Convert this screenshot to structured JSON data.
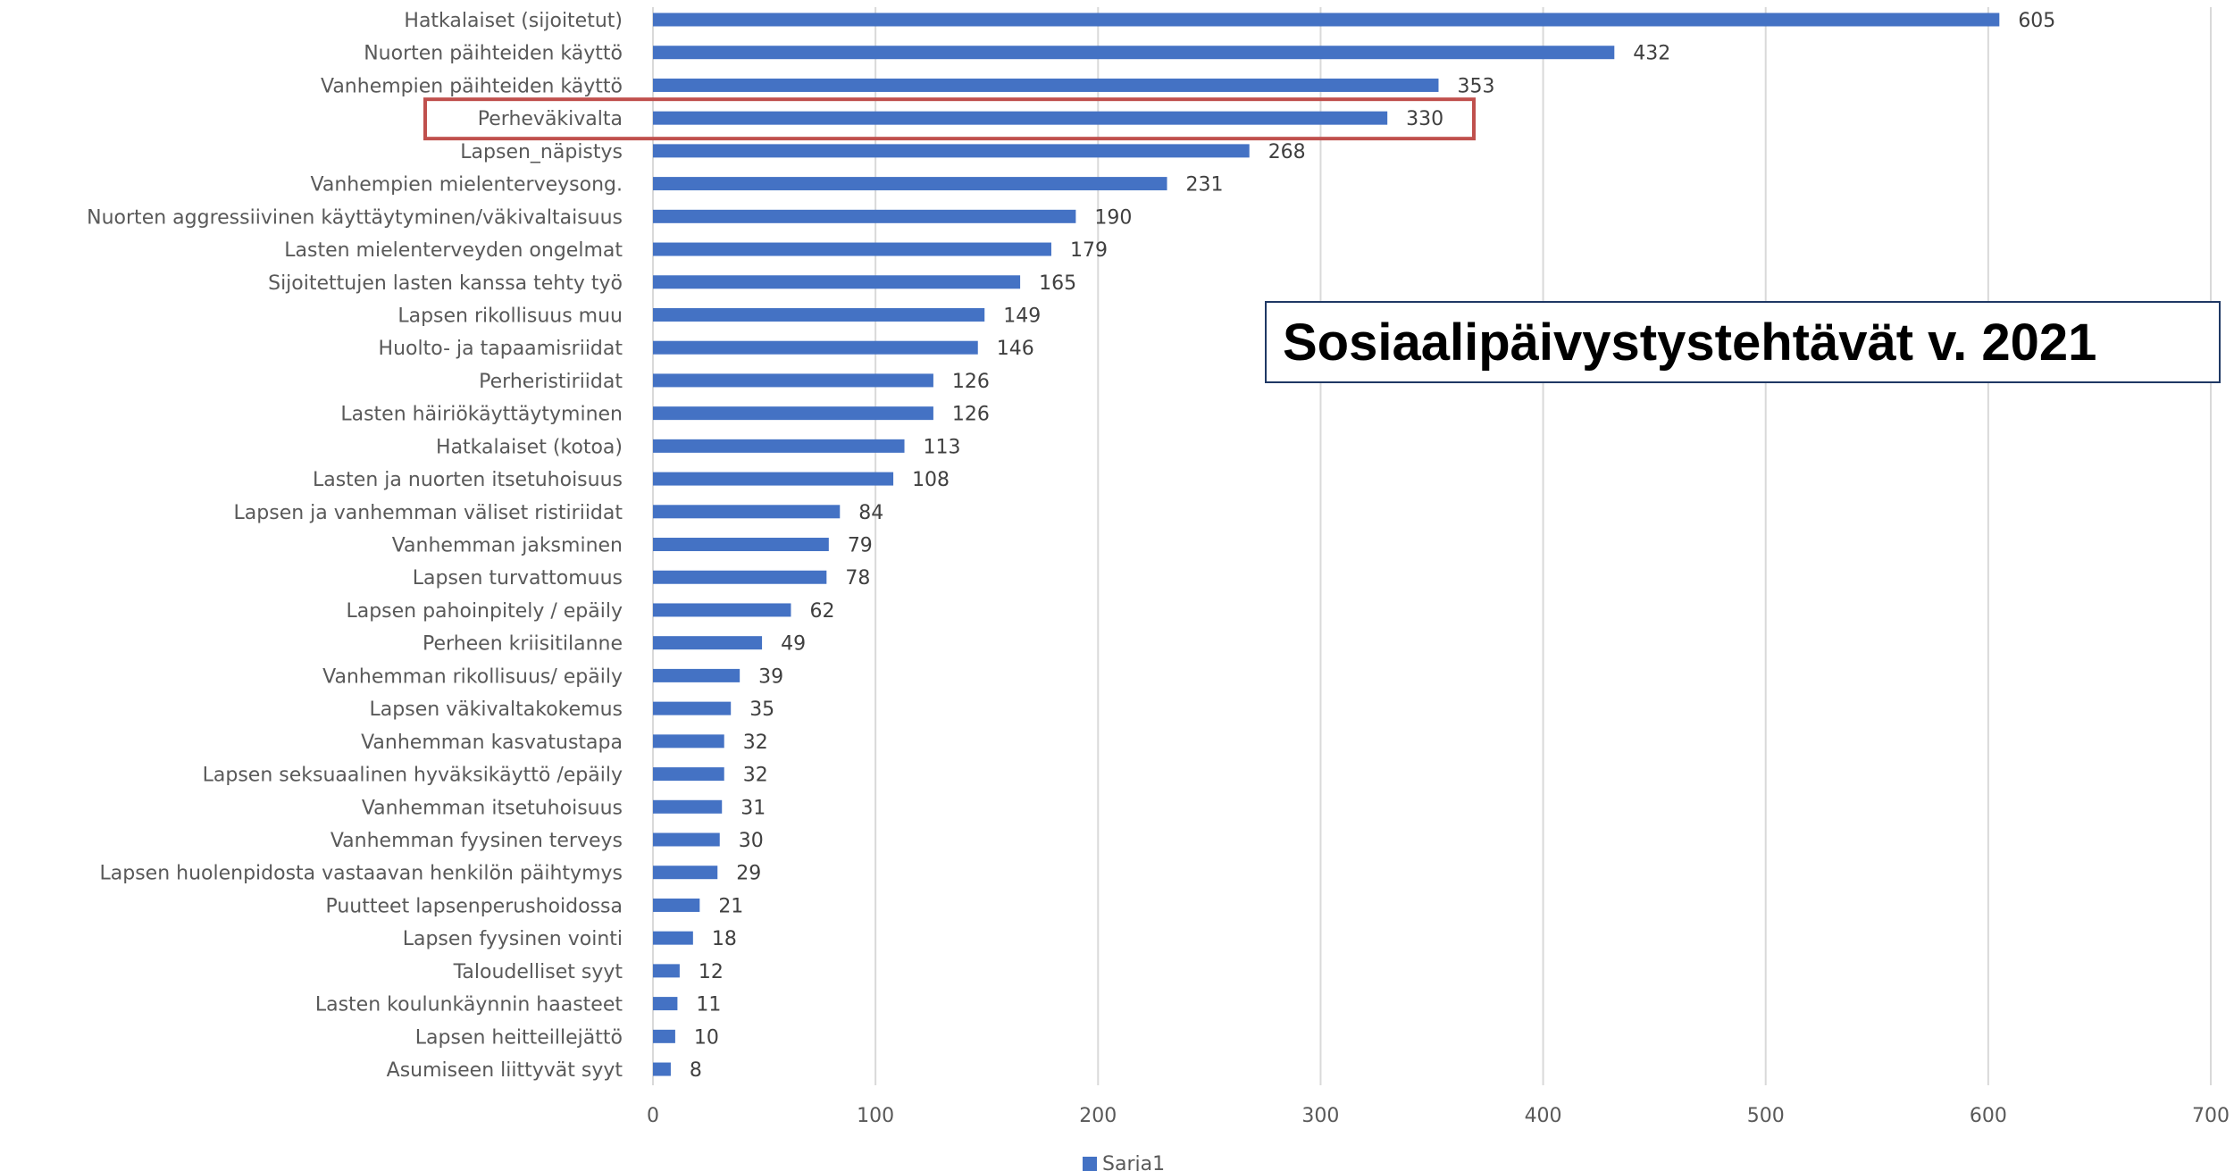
{
  "chart_data": {
    "type": "bar",
    "orientation": "horizontal",
    "title": "Sosiaalipäivystystehtävät v. 2021",
    "categories": [
      "Hatkalaiset (sijoitetut)",
      "Nuorten päihteiden käyttö",
      "Vanhempien päihteiden käyttö",
      "Perheväkivalta",
      "Lapsen_näpistys",
      "Vanhempien mielenterveysong.",
      "Nuorten aggressiivinen käyttäytyminen/väkivaltaisuus",
      "Lasten mielenterveyden ongelmat",
      "Sijoitettujen lasten kanssa tehty työ",
      "Lapsen rikollisuus muu",
      "Huolto- ja tapaamisriidat",
      "Perheristiriidat",
      "Lasten häiriökäyttäytyminen",
      "Hatkalaiset (kotoa)",
      "Lasten ja nuorten itsetuhoisuus",
      "Lapsen ja vanhemman väliset ristiriidat",
      "Vanhemman jaksminen",
      "Lapsen turvattomuus",
      "Lapsen pahoinpitely / epäily",
      "Perheen kriisitilanne",
      "Vanhemman rikollisuus/ epäily",
      "Lapsen väkivaltakokemus",
      "Vanhemman kasvatustapa",
      "Lapsen seksuaalinen hyväksikäyttö /epäily",
      "Vanhemman itsetuhoisuus",
      "Vanhemman fyysinen terveys",
      "Lapsen huolenpidosta vastaavan henkilön päihtymys",
      "Puutteet lapsenperushoidossa",
      "Lapsen fyysinen vointi",
      "Taloudelliset syyt",
      "Lasten koulunkäynnin haasteet",
      "Lapsen heitteillejättö",
      "Asumiseen liittyvät syyt"
    ],
    "series": [
      {
        "name": "Sarja1",
        "color": "#4472c4",
        "values": [
          605,
          432,
          353,
          330,
          268,
          231,
          190,
          179,
          165,
          149,
          146,
          126,
          126,
          113,
          108,
          84,
          79,
          78,
          62,
          49,
          39,
          35,
          32,
          32,
          31,
          30,
          29,
          21,
          18,
          12,
          11,
          10,
          8
        ]
      }
    ],
    "xlim": [
      0,
      700
    ],
    "xticks": [
      0,
      100,
      200,
      300,
      400,
      500,
      600,
      700
    ],
    "grid": true,
    "legend": "bottom",
    "highlighted_category": "Perheväkivalta",
    "highlight_color": "#c0504d"
  }
}
